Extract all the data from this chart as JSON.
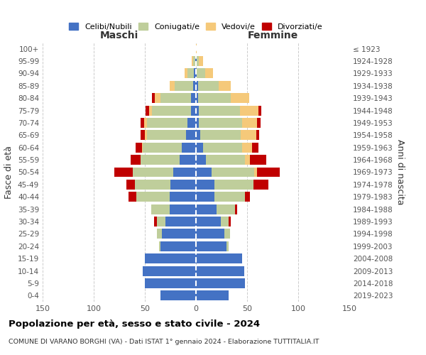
{
  "age_groups": [
    "0-4",
    "5-9",
    "10-14",
    "15-19",
    "20-24",
    "25-29",
    "30-34",
    "35-39",
    "40-44",
    "45-49",
    "50-54",
    "55-59",
    "60-64",
    "65-69",
    "70-74",
    "75-79",
    "80-84",
    "85-89",
    "90-94",
    "95-99",
    "100+"
  ],
  "birth_years": [
    "2019-2023",
    "2014-2018",
    "2009-2013",
    "2004-2008",
    "1999-2003",
    "1994-1998",
    "1989-1993",
    "1984-1988",
    "1979-1983",
    "1974-1978",
    "1969-1973",
    "1964-1968",
    "1959-1963",
    "1954-1958",
    "1949-1953",
    "1944-1948",
    "1939-1943",
    "1934-1938",
    "1929-1933",
    "1924-1928",
    "≤ 1923"
  ],
  "colors": {
    "celibe": "#4472C4",
    "coniugato": "#BFCE9B",
    "vedovo": "#F5C97A",
    "divorziato": "#C00000"
  },
  "males": {
    "celibe": [
      35,
      50,
      52,
      50,
      35,
      33,
      30,
      26,
      26,
      25,
      22,
      16,
      14,
      10,
      8,
      5,
      5,
      3,
      2,
      1,
      0
    ],
    "coniugato": [
      0,
      0,
      0,
      0,
      1,
      5,
      8,
      18,
      32,
      35,
      40,
      38,
      38,
      38,
      40,
      38,
      30,
      18,
      6,
      2,
      0
    ],
    "vedovo": [
      0,
      0,
      0,
      0,
      0,
      0,
      0,
      0,
      0,
      0,
      0,
      0,
      1,
      2,
      3,
      3,
      5,
      5,
      3,
      1,
      0
    ],
    "divorziato": [
      0,
      0,
      0,
      0,
      0,
      0,
      3,
      0,
      8,
      8,
      18,
      10,
      6,
      4,
      3,
      3,
      3,
      0,
      0,
      0,
      0
    ]
  },
  "females": {
    "nubile": [
      32,
      48,
      47,
      45,
      30,
      28,
      24,
      20,
      18,
      18,
      15,
      10,
      7,
      4,
      3,
      3,
      2,
      2,
      1,
      1,
      0
    ],
    "coniugata": [
      0,
      0,
      0,
      0,
      2,
      5,
      8,
      18,
      30,
      38,
      42,
      38,
      38,
      40,
      42,
      40,
      32,
      20,
      8,
      2,
      0
    ],
    "vedova": [
      0,
      0,
      0,
      0,
      0,
      0,
      0,
      0,
      0,
      0,
      3,
      5,
      10,
      15,
      15,
      18,
      18,
      12,
      8,
      4,
      1
    ],
    "divorziata": [
      0,
      0,
      0,
      0,
      0,
      0,
      2,
      2,
      5,
      15,
      22,
      16,
      6,
      3,
      3,
      3,
      0,
      0,
      0,
      0,
      0
    ]
  },
  "title": "Popolazione per età, sesso e stato civile - 2024",
  "subtitle": "COMUNE DI VARANO BORGHI (VA) - Dati ISTAT 1° gennaio 2024 - Elaborazione TUTTITALIA.IT",
  "xlabel_left": "Maschi",
  "xlabel_right": "Femmine",
  "ylabel_left": "Fasce di età",
  "ylabel_right": "Anni di nascita",
  "xlim": 150,
  "background": "#ffffff",
  "legend_labels": [
    "Celibi/Nubili",
    "Coniugati/e",
    "Vedovi/e",
    "Divorziati/e"
  ]
}
